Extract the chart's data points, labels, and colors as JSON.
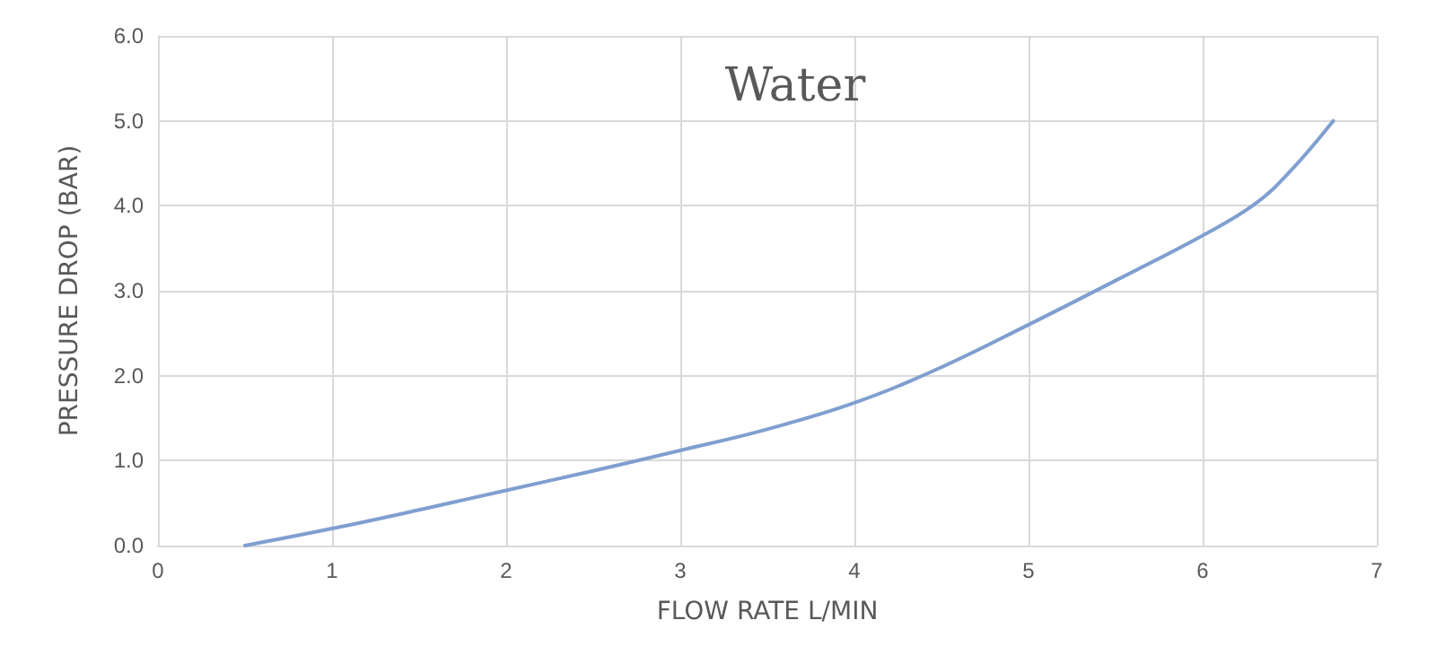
{
  "chart_data": {
    "type": "line",
    "title": "Water",
    "xlabel": "FLOW RATE L/MIN",
    "ylabel": "PRESSURE DROP (BAR)",
    "x": [
      0.5,
      1,
      1.5,
      2,
      2.5,
      3,
      3.5,
      4,
      4.5,
      5,
      5.5,
      6,
      6.3,
      6.5,
      6.75
    ],
    "series": [
      {
        "color": "#7f9fd0",
        "values": [
          0,
          0.2,
          0.42,
          0.65,
          0.88,
          1.12,
          1.37,
          1.68,
          2.1,
          2.6,
          3.12,
          3.65,
          4.02,
          4.4,
          5.0
        ]
      }
    ],
    "xlim": [
      0,
      7
    ],
    "xticks": [
      0,
      1,
      2,
      3,
      4,
      5,
      6,
      7
    ],
    "ylim": [
      0,
      6
    ],
    "yticks": [
      {
        "value": 0,
        "label": "0.0"
      },
      {
        "value": 1,
        "label": "1.0"
      },
      {
        "value": 2,
        "label": "2.0"
      },
      {
        "value": 3,
        "label": "3.0"
      },
      {
        "value": 4,
        "label": "4.0"
      },
      {
        "value": 5,
        "label": "5.0"
      },
      {
        "value": 6,
        "label": "6.0"
      }
    ],
    "grid": true,
    "marker": "none",
    "line_style": "solid"
  }
}
